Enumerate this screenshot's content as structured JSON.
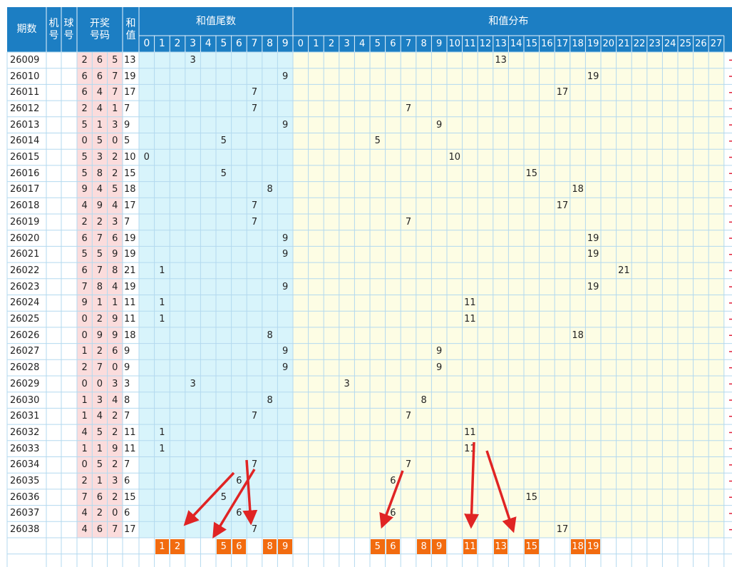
{
  "header": {
    "issue": "期数",
    "machine": "机号",
    "ball": "球号",
    "draw": "开奖号码",
    "sum": "和值",
    "tail_group": "和值尾数",
    "dist_group": "和值分布",
    "tail_digits": [
      0,
      1,
      2,
      3,
      4,
      5,
      6,
      7,
      8,
      9
    ],
    "dist_digits": [
      0,
      1,
      2,
      3,
      4,
      5,
      6,
      7,
      8,
      9,
      10,
      11,
      12,
      13,
      14,
      15,
      16,
      17,
      18,
      19,
      20,
      21,
      22,
      23,
      24,
      25,
      26,
      27
    ]
  },
  "rows": [
    {
      "issue": 26009,
      "balls": [
        2,
        6,
        5
      ],
      "sum": 13,
      "tail": 3
    },
    {
      "issue": 26010,
      "balls": [
        6,
        6,
        7
      ],
      "sum": 19,
      "tail": 9
    },
    {
      "issue": 26011,
      "balls": [
        6,
        4,
        7
      ],
      "sum": 17,
      "tail": 7
    },
    {
      "issue": 26012,
      "balls": [
        2,
        4,
        1
      ],
      "sum": 7,
      "tail": 7
    },
    {
      "issue": 26013,
      "balls": [
        5,
        1,
        3
      ],
      "sum": 9,
      "tail": 9
    },
    {
      "issue": 26014,
      "balls": [
        0,
        5,
        0
      ],
      "sum": 5,
      "tail": 5
    },
    {
      "issue": 26015,
      "balls": [
        5,
        3,
        2
      ],
      "sum": 10,
      "tail": 0
    },
    {
      "issue": 26016,
      "balls": [
        5,
        8,
        2
      ],
      "sum": 15,
      "tail": 5
    },
    {
      "issue": 26017,
      "balls": [
        9,
        4,
        5
      ],
      "sum": 18,
      "tail": 8
    },
    {
      "issue": 26018,
      "balls": [
        4,
        9,
        4
      ],
      "sum": 17,
      "tail": 7
    },
    {
      "issue": 26019,
      "balls": [
        2,
        2,
        3
      ],
      "sum": 7,
      "tail": 7
    },
    {
      "issue": 26020,
      "balls": [
        6,
        7,
        6
      ],
      "sum": 19,
      "tail": 9
    },
    {
      "issue": 26021,
      "balls": [
        5,
        5,
        9
      ],
      "sum": 19,
      "tail": 9
    },
    {
      "issue": 26022,
      "balls": [
        6,
        7,
        8
      ],
      "sum": 21,
      "tail": 1
    },
    {
      "issue": 26023,
      "balls": [
        7,
        8,
        4
      ],
      "sum": 19,
      "tail": 9
    },
    {
      "issue": 26024,
      "balls": [
        9,
        1,
        1
      ],
      "sum": 11,
      "tail": 1
    },
    {
      "issue": 26025,
      "balls": [
        0,
        2,
        9
      ],
      "sum": 11,
      "tail": 1
    },
    {
      "issue": 26026,
      "balls": [
        0,
        9,
        9
      ],
      "sum": 18,
      "tail": 8
    },
    {
      "issue": 26027,
      "balls": [
        1,
        2,
        6
      ],
      "sum": 9,
      "tail": 9
    },
    {
      "issue": 26028,
      "balls": [
        2,
        7,
        0
      ],
      "sum": 9,
      "tail": 9
    },
    {
      "issue": 26029,
      "balls": [
        0,
        0,
        3
      ],
      "sum": 3,
      "tail": 3
    },
    {
      "issue": 26030,
      "balls": [
        1,
        3,
        4
      ],
      "sum": 8,
      "tail": 8
    },
    {
      "issue": 26031,
      "balls": [
        1,
        4,
        2
      ],
      "sum": 7,
      "tail": 7
    },
    {
      "issue": 26032,
      "balls": [
        4,
        5,
        2
      ],
      "sum": 11,
      "tail": 1
    },
    {
      "issue": 26033,
      "balls": [
        1,
        1,
        9
      ],
      "sum": 11,
      "tail": 1
    },
    {
      "issue": 26034,
      "balls": [
        0,
        5,
        2
      ],
      "sum": 7,
      "tail": 7
    },
    {
      "issue": 26035,
      "balls": [
        2,
        1,
        3
      ],
      "sum": 6,
      "tail": 6
    },
    {
      "issue": 26036,
      "balls": [
        7,
        6,
        2
      ],
      "sum": 15,
      "tail": 5
    },
    {
      "issue": 26037,
      "balls": [
        4,
        2,
        0
      ],
      "sum": 6,
      "tail": 6
    },
    {
      "issue": 26038,
      "balls": [
        4,
        6,
        7
      ],
      "sum": 17,
      "tail": 7
    }
  ],
  "picks": {
    "tail": [
      1,
      2,
      5,
      6,
      8,
      9
    ],
    "dist": [
      5,
      6,
      8,
      9,
      11,
      13,
      15,
      18,
      19
    ]
  }
}
